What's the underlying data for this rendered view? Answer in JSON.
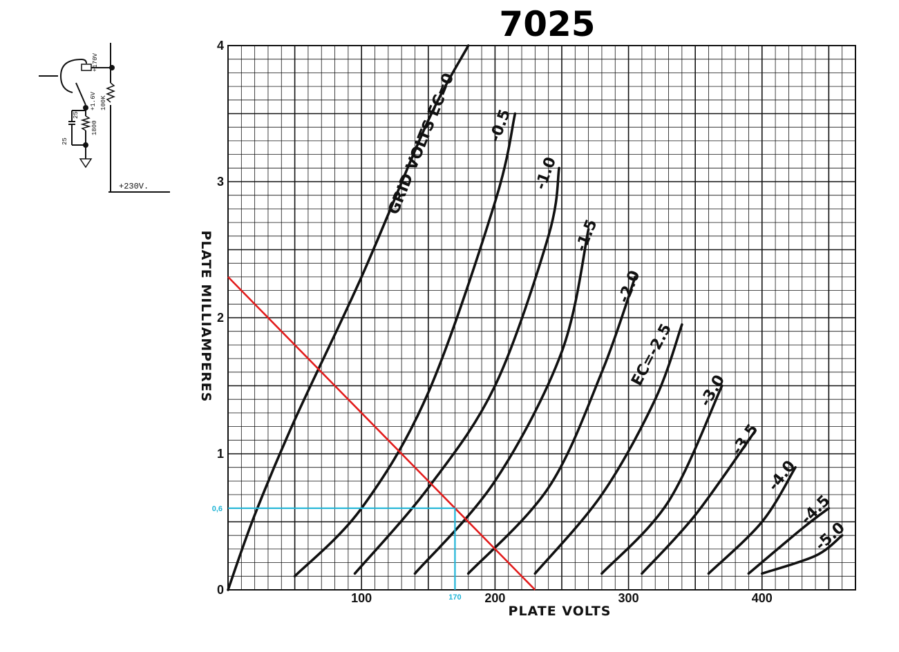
{
  "chart_data": {
    "type": "line",
    "title": "7025",
    "xlabel": "PLATE VOLTS",
    "ylabel": "PLATE MILLIAMPERES",
    "xlim": [
      0,
      470
    ],
    "ylim": [
      0,
      4
    ],
    "xticks": [
      0,
      100,
      200,
      300,
      400
    ],
    "xtick_labels": [
      "",
      "100",
      "200",
      "300",
      "400"
    ],
    "yticks": [
      0,
      1,
      2,
      3,
      4
    ],
    "ytick_labels": [
      "0",
      "1",
      "2",
      "3",
      "4"
    ],
    "grid": true,
    "series": [
      {
        "name": "GRID VOLTS EC=0",
        "x": [
          0,
          20,
          50,
          100,
          150,
          180
        ],
        "y": [
          0,
          0.55,
          1.25,
          2.3,
          3.45,
          4.0
        ]
      },
      {
        "name": "-0.5",
        "x": [
          50,
          100,
          150,
          200,
          215
        ],
        "y": [
          0.1,
          0.6,
          1.45,
          2.85,
          3.5
        ]
      },
      {
        "name": "-1.0",
        "x": [
          95,
          150,
          200,
          240,
          248
        ],
        "y": [
          0.12,
          0.75,
          1.5,
          2.6,
          3.1
        ]
      },
      {
        "name": "-1.5",
        "x": [
          140,
          200,
          250,
          270
        ],
        "y": [
          0.12,
          0.8,
          1.75,
          2.65
        ]
      },
      {
        "name": "-2.0",
        "x": [
          180,
          240,
          280,
          305
        ],
        "y": [
          0.12,
          0.75,
          1.6,
          2.3
        ]
      },
      {
        "name": "EC=-2.5",
        "x": [
          230,
          280,
          320,
          340
        ],
        "y": [
          0.12,
          0.7,
          1.4,
          1.95
        ]
      },
      {
        "name": "-3.0",
        "x": [
          280,
          330,
          370
        ],
        "y": [
          0.12,
          0.65,
          1.5
        ]
      },
      {
        "name": "-3.5",
        "x": [
          310,
          350,
          395
        ],
        "y": [
          0.12,
          0.55,
          1.17
        ]
      },
      {
        "name": "-4.0",
        "x": [
          360,
          400,
          425
        ],
        "y": [
          0.12,
          0.5,
          0.9
        ]
      },
      {
        "name": "-4.5",
        "x": [
          390,
          430,
          450
        ],
        "y": [
          0.12,
          0.45,
          0.6
        ]
      },
      {
        "name": "-5.0",
        "x": [
          400,
          440,
          460
        ],
        "y": [
          0.12,
          0.25,
          0.4
        ]
      }
    ],
    "load_line": {
      "x": [
        0,
        230
      ],
      "y": [
        2.3,
        0
      ]
    },
    "operating_point": {
      "x": 170,
      "y": 0.6,
      "x_label": "170",
      "y_label": "0,6",
      "color": "#1fb4d6"
    },
    "load_line_color": "#e21b1b"
  },
  "curve_labels": {
    "ec0": "GRID VOLTS EC=0",
    "m05": "-0.5",
    "m10": "-1.0",
    "m15": "-1.5",
    "m20": "-2.0",
    "m25": "EC=-2.5",
    "m30": "-3.0",
    "m35": "-3.5",
    "m40": "-4.0",
    "m45": "-4.5",
    "m50": "-5.0"
  },
  "schematic": {
    "plate_voltage": "+170V",
    "cathode_voltage": "+1.6V",
    "plate_resistor": "100K",
    "cathode_resistor": "1800",
    "cap_value_a": "25",
    "cap_value_b": "25",
    "supply": "+230V."
  }
}
